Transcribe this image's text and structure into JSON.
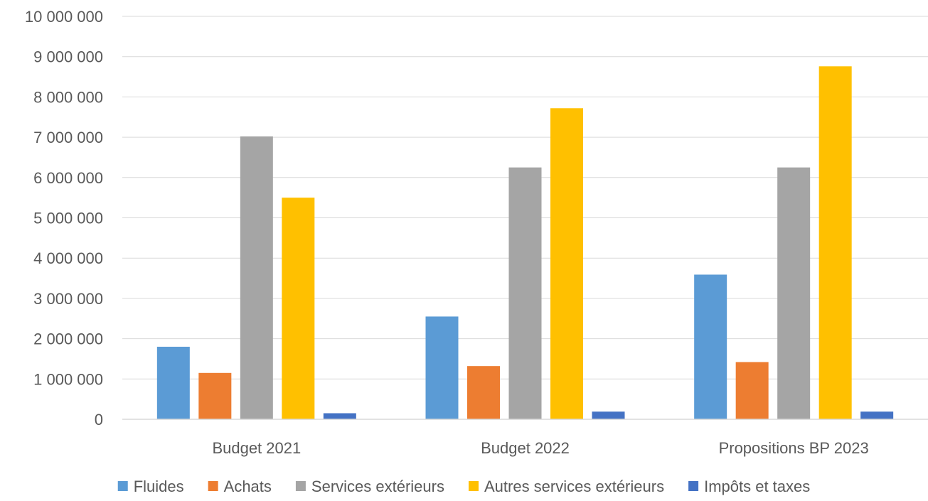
{
  "chart_data": {
    "type": "bar",
    "title": "",
    "xlabel": "",
    "ylabel": "",
    "ylim": [
      0,
      10000000
    ],
    "yticks": [
      "0",
      "1 000 000",
      "2 000 000",
      "3 000 000",
      "4 000 000",
      "5 000 000",
      "6 000 000",
      "7 000 000",
      "8 000 000",
      "9 000 000",
      "10 000 000"
    ],
    "grid": true,
    "legend_position": "bottom",
    "categories": [
      "Budget 2021",
      "Budget 2022",
      "Propositions BP 2023"
    ],
    "series": [
      {
        "name": "Fluides",
        "color": "#5B9BD5",
        "values": [
          1800000,
          2550000,
          3590000
        ]
      },
      {
        "name": "Achats",
        "color": "#ED7D31",
        "values": [
          1150000,
          1320000,
          1420000
        ]
      },
      {
        "name": "Services extérieurs",
        "color": "#A5A5A5",
        "values": [
          7020000,
          6250000,
          6250000
        ]
      },
      {
        "name": "Autres services extérieurs",
        "color": "#FFC000",
        "values": [
          5500000,
          7720000,
          8760000
        ]
      },
      {
        "name": "Impôts et taxes",
        "color": "#4472C4",
        "values": [
          150000,
          190000,
          190000
        ]
      }
    ]
  }
}
